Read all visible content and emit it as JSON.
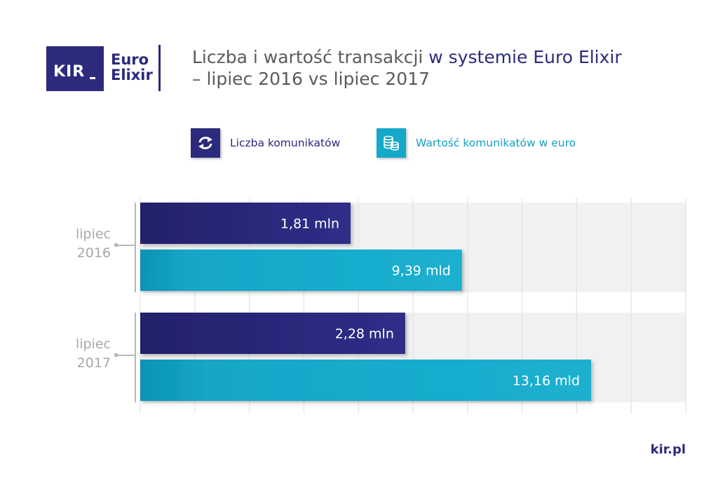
{
  "logo": {
    "kir": "KIR",
    "euro": "Euro",
    "elixir": "Elixir"
  },
  "title": {
    "line1_part1": "Liczba i wartość transakcji ",
    "line1_part2": "w systemie Euro Elixir",
    "line2": "– lipiec 2016 vs lipiec 2017"
  },
  "legend": [
    {
      "label": "Liczba komunikatów",
      "icon": "refresh-arrows-icon",
      "color": "#2b2a7d"
    },
    {
      "label": "Wartość komunikatów w euro",
      "icon": "coins-icon",
      "color": "#14a8c9"
    }
  ],
  "chart_data": {
    "type": "bar",
    "orientation": "horizontal",
    "categories": [
      {
        "line1": "lipiec",
        "line2": "2016"
      },
      {
        "line1": "lipiec",
        "line2": "2017"
      }
    ],
    "series": [
      {
        "name": "Liczba komunikatów",
        "values": [
          1.81,
          2.28
        ],
        "labels": [
          "1,81 mln",
          "2,28 mln"
        ],
        "color": "#2b2a7d"
      },
      {
        "name": "Wartość komunikatów w euro",
        "values": [
          9.39,
          13.16
        ],
        "labels": [
          "9,39 mld",
          "13,16 mld"
        ],
        "color": "#14a8c9"
      }
    ],
    "grid": true,
    "legend": "top"
  },
  "footer": {
    "site": "kir.pl"
  }
}
